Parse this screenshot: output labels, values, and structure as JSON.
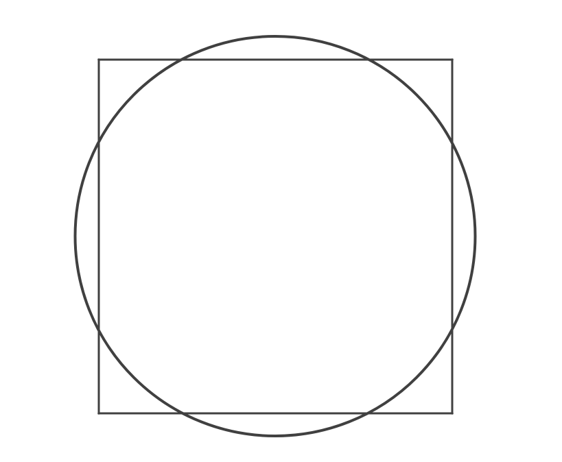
{
  "diagram": {
    "stroke_color": "#404040",
    "background_color": "#ffffff",
    "shapes": [
      {
        "kind": "square"
      },
      {
        "kind": "circle"
      }
    ]
  }
}
